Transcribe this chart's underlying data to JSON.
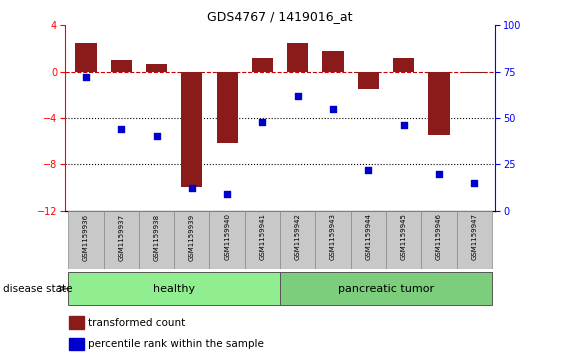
{
  "title": "GDS4767 / 1419016_at",
  "samples": [
    "GSM1159936",
    "GSM1159937",
    "GSM1159938",
    "GSM1159939",
    "GSM1159940",
    "GSM1159941",
    "GSM1159942",
    "GSM1159943",
    "GSM1159944",
    "GSM1159945",
    "GSM1159946",
    "GSM1159947"
  ],
  "bar_values": [
    2.5,
    1.0,
    0.7,
    -10.0,
    -6.2,
    1.2,
    2.5,
    1.8,
    -1.5,
    1.2,
    -5.5,
    -0.1
  ],
  "scatter_values": [
    72,
    44,
    40,
    12,
    9,
    48,
    62,
    55,
    22,
    46,
    20,
    15
  ],
  "ylim_left": [
    -12,
    4
  ],
  "ylim_right": [
    0,
    100
  ],
  "yticks_left": [
    -12,
    -8,
    -4,
    0,
    4
  ],
  "yticks_right": [
    0,
    25,
    50,
    75,
    100
  ],
  "bar_color": "#8B1A1A",
  "scatter_color": "#0000CD",
  "zero_line_color": "#CC0000",
  "dotted_line_color": "#000000",
  "healthy_label": "healthy",
  "tumor_label": "pancreatic tumor",
  "healthy_color": "#90EE90",
  "tumor_color": "#7CCD7C",
  "healthy_count": 6,
  "title_fontsize": 9,
  "axis_fontsize": 7,
  "tick_fontsize": 7,
  "sample_fontsize": 5,
  "disease_state_label": "disease state",
  "legend_red_label": "transformed count",
  "legend_blue_label": "percentile rank within the sample"
}
